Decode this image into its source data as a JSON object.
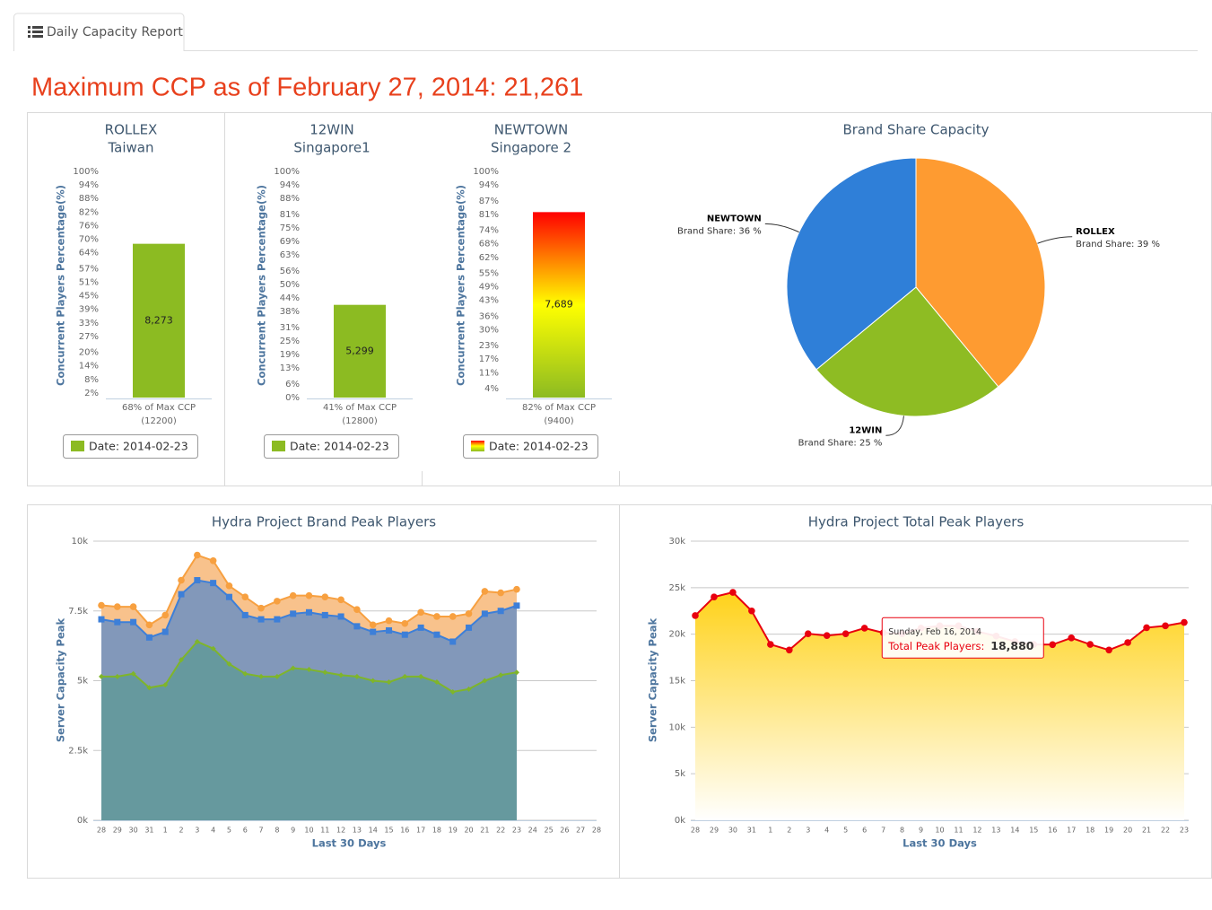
{
  "tab": "Daily Capacity Report",
  "headline": "Maximum CCP as of February 27, 2014: 21,261",
  "chart_data": [
    {
      "type": "gauge-bar",
      "title": "ROLLEX",
      "subtitle": "Taiwan",
      "y_label": "Concurrent Players Percentage(%)",
      "ylim": [
        0,
        100
      ],
      "yticks": [
        {
          "value": 100,
          "label": "100%"
        },
        {
          "value": 94,
          "label": "94%"
        },
        {
          "value": 88,
          "label": "88%"
        },
        {
          "value": 82,
          "label": "82%"
        },
        {
          "value": 76,
          "label": "76%"
        },
        {
          "value": 70,
          "label": "70%"
        },
        {
          "value": 64,
          "label": "64%"
        },
        {
          "value": 57,
          "label": "57%"
        },
        {
          "value": 51,
          "label": "51%"
        },
        {
          "value": 45,
          "label": "45%"
        },
        {
          "value": 39,
          "label": "39%"
        },
        {
          "value": 33,
          "label": "33%"
        },
        {
          "value": 27,
          "label": "27%"
        },
        {
          "value": 20,
          "label": "20%"
        },
        {
          "value": 14,
          "label": "14%"
        },
        {
          "value": 8,
          "label": "8%"
        },
        {
          "value": 2,
          "label": "2%"
        }
      ],
      "categories": [
        "68% of Max CCP"
      ],
      "category_notes": [
        "(12200)"
      ],
      "values": [
        68
      ],
      "bar_text": "8,273",
      "color": "#8cbb22",
      "legend": "Date: 2014-02-23"
    },
    {
      "type": "gauge-bar",
      "title": "12WIN",
      "subtitle": "Singapore1",
      "y_label": "Concurrent Players Percentage(%)",
      "ylim": [
        0,
        100
      ],
      "yticks": [
        {
          "value": 100,
          "label": "100%"
        },
        {
          "value": 94,
          "label": "94%"
        },
        {
          "value": 88,
          "label": "88%"
        },
        {
          "value": 81,
          "label": "81%"
        },
        {
          "value": 75,
          "label": "75%"
        },
        {
          "value": 69,
          "label": "69%"
        },
        {
          "value": 63,
          "label": "63%"
        },
        {
          "value": 56,
          "label": "56%"
        },
        {
          "value": 50,
          "label": "50%"
        },
        {
          "value": 44,
          "label": "44%"
        },
        {
          "value": 38,
          "label": "38%"
        },
        {
          "value": 31,
          "label": "31%"
        },
        {
          "value": 25,
          "label": "25%"
        },
        {
          "value": 19,
          "label": "19%"
        },
        {
          "value": 13,
          "label": "13%"
        },
        {
          "value": 6,
          "label": "6%"
        },
        {
          "value": 0,
          "label": "0%"
        }
      ],
      "categories": [
        "41% of Max CCP"
      ],
      "category_notes": [
        "(12800)"
      ],
      "values": [
        41
      ],
      "bar_text": "5,299",
      "color": "#8cbb22",
      "legend": "Date: 2014-02-23"
    },
    {
      "type": "gauge-bar",
      "title": "NEWTOWN",
      "subtitle": "Singapore 2",
      "y_label": "Concurrent Players Percentage(%)",
      "ylim": [
        0,
        100
      ],
      "yticks": [
        {
          "value": 100,
          "label": "100%"
        },
        {
          "value": 94,
          "label": "94%"
        },
        {
          "value": 87,
          "label": "87%"
        },
        {
          "value": 81,
          "label": "81%"
        },
        {
          "value": 74,
          "label": "74%"
        },
        {
          "value": 68,
          "label": "68%"
        },
        {
          "value": 62,
          "label": "62%"
        },
        {
          "value": 55,
          "label": "55%"
        },
        {
          "value": 49,
          "label": "49%"
        },
        {
          "value": 43,
          "label": "43%"
        },
        {
          "value": 36,
          "label": "36%"
        },
        {
          "value": 30,
          "label": "30%"
        },
        {
          "value": 23,
          "label": "23%"
        },
        {
          "value": 17,
          "label": "17%"
        },
        {
          "value": 11,
          "label": "11%"
        },
        {
          "value": 4,
          "label": "4%"
        }
      ],
      "categories": [
        "82% of Max CCP"
      ],
      "category_notes": [
        "(9400)"
      ],
      "values": [
        82
      ],
      "bar_text": "7,689",
      "gradient": [
        "#ff0000",
        "#ffff00",
        "#8cbb22"
      ],
      "legend": "Date: 2014-02-23"
    },
    {
      "type": "pie",
      "title": "Brand Share Capacity",
      "categories": [
        "ROLLEX",
        "12WIN",
        "NEWTOWN"
      ],
      "values": [
        39,
        25,
        36
      ],
      "value_labels": [
        "Brand Share: 39 %",
        "Brand Share: 25 %",
        "Brand Share: 36 %"
      ],
      "colors": [
        "#fe9b31",
        "#8ebc23",
        "#2f7fd8"
      ]
    },
    {
      "type": "area",
      "title": "Hydra Project Brand Peak Players",
      "y_label": "Server Capacity Peak",
      "x_label": "Last 30 Days",
      "categories": [
        "28",
        "29",
        "30",
        "31",
        "1",
        "2",
        "3",
        "4",
        "5",
        "6",
        "7",
        "8",
        "9",
        "10",
        "11",
        "12",
        "13",
        "14",
        "15",
        "16",
        "17",
        "18",
        "19",
        "20",
        "21",
        "22",
        "23",
        "24",
        "25",
        "26",
        "27",
        "28"
      ],
      "ylim": [
        0,
        10000
      ],
      "yticks": [
        {
          "value": 0,
          "label": "0k"
        },
        {
          "value": 2500,
          "label": "2.5k"
        },
        {
          "value": 5000,
          "label": "5k"
        },
        {
          "value": 7500,
          "label": "7.5k"
        },
        {
          "value": 10000,
          "label": "10k"
        }
      ],
      "grid": true,
      "series": [
        {
          "color": "#f7a040",
          "fill": "#f8c28c",
          "marker": "circle",
          "values": [
            7700,
            7650,
            7650,
            7000,
            7350,
            8600,
            9500,
            9300,
            8400,
            8000,
            7600,
            7850,
            8050,
            8050,
            8000,
            7900,
            7550,
            7000,
            7150,
            7050,
            7450,
            7300,
            7300,
            7400,
            8200,
            8150,
            8273,
            null,
            null,
            null,
            null,
            null
          ]
        },
        {
          "color": "#3d7fd8",
          "fill": "#8298ba",
          "marker": "square",
          "values": [
            7200,
            7100,
            7100,
            6550,
            6750,
            8100,
            8600,
            8500,
            8000,
            7350,
            7200,
            7200,
            7400,
            7450,
            7350,
            7300,
            6950,
            6750,
            6800,
            6650,
            6900,
            6650,
            6400,
            6900,
            7400,
            7500,
            7689,
            null,
            null,
            null,
            null,
            null
          ]
        },
        {
          "color": "#7fb52a",
          "fill": "#66999e",
          "marker": "diamond",
          "values": [
            5150,
            5150,
            5250,
            4750,
            4850,
            5750,
            6400,
            6150,
            5600,
            5250,
            5150,
            5150,
            5450,
            5400,
            5300,
            5200,
            5150,
            5000,
            4950,
            5150,
            5150,
            4950,
            4600,
            4700,
            5000,
            5200,
            5299,
            null,
            null,
            null,
            null,
            null
          ]
        }
      ]
    },
    {
      "type": "line",
      "title": "Hydra Project Total Peak Players",
      "y_label": "Server Capacity Peak",
      "x_label": "Last 30 Days",
      "categories": [
        "28",
        "29",
        "30",
        "31",
        "1",
        "2",
        "3",
        "4",
        "5",
        "6",
        "7",
        "8",
        "9",
        "10",
        "11",
        "12",
        "13",
        "14",
        "15",
        "16",
        "17",
        "18",
        "19",
        "20",
        "21",
        "22",
        "23"
      ],
      "ylim": [
        0,
        30000
      ],
      "yticks": [
        {
          "value": 0,
          "label": "0k"
        },
        {
          "value": 5000,
          "label": "5k"
        },
        {
          "value": 10000,
          "label": "10k"
        },
        {
          "value": 15000,
          "label": "15k"
        },
        {
          "value": 20000,
          "label": "20k"
        },
        {
          "value": 25000,
          "label": "25k"
        },
        {
          "value": 30000,
          "label": "30k"
        }
      ],
      "grid": true,
      "series": [
        {
          "color": "#e8000f",
          "fill_gradient": [
            "#ffd21a",
            "#ffffff"
          ],
          "marker": "circle",
          "values": [
            22000,
            24000,
            24500,
            22500,
            18900,
            18300,
            20050,
            19850,
            20050,
            20650,
            20150,
            20050,
            20650,
            20900,
            20900,
            20300,
            19800,
            19200,
            18900,
            18880,
            19600,
            18900,
            18300,
            19100,
            20700,
            20900,
            21261
          ]
        }
      ],
      "tooltip": {
        "title": "Sunday, Feb 16, 2014",
        "label": "Total Peak Players:",
        "value": 18880,
        "value_label": "18,880"
      }
    }
  ]
}
